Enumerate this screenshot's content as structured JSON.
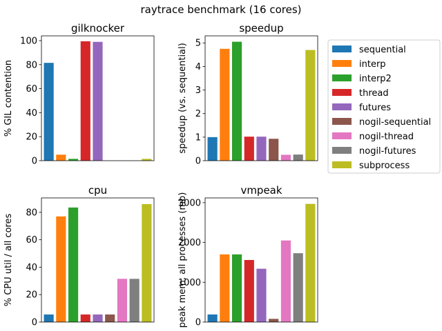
{
  "figure_title": "raytrace benchmark (16 cores)",
  "legend": {
    "placement": "right",
    "entries": [
      {
        "label": "sequential",
        "color": "#1f77b4"
      },
      {
        "label": "interp",
        "color": "#ff7f0e"
      },
      {
        "label": "interp2",
        "color": "#2ca02c"
      },
      {
        "label": "thread",
        "color": "#d62728"
      },
      {
        "label": "futures",
        "color": "#9467bd"
      },
      {
        "label": "nogil-sequential",
        "color": "#8c564b"
      },
      {
        "label": "nogil-thread",
        "color": "#e377c2"
      },
      {
        "label": "nogil-futures",
        "color": "#7f7f7f"
      },
      {
        "label": "subprocess",
        "color": "#bcbd22"
      }
    ]
  },
  "chart_data": [
    {
      "type": "bar",
      "title": "gilknocker",
      "xlabel": "",
      "ylabel": "% GIL contention",
      "categories": [
        "sequential",
        "interp",
        "interp2",
        "thread",
        "futures",
        "nogil-sequential",
        "nogil-thread",
        "nogil-futures",
        "subprocess"
      ],
      "values": [
        81.5,
        5,
        1.5,
        99.5,
        99,
        0,
        0,
        0,
        1.5
      ],
      "ylim": [
        0,
        104
      ],
      "yticks": [
        0,
        20,
        40,
        60,
        80,
        100
      ],
      "grid": false
    },
    {
      "type": "bar",
      "title": "speedup",
      "xlabel": "",
      "ylabel": "speedup (vs. sequential)",
      "categories": [
        "sequential",
        "interp",
        "interp2",
        "thread",
        "futures",
        "nogil-sequential",
        "nogil-thread",
        "nogil-futures",
        "subprocess"
      ],
      "values": [
        1.0,
        4.75,
        5.05,
        1.02,
        1.02,
        0.93,
        0.25,
        0.26,
        4.7
      ],
      "ylim": [
        0,
        5.3
      ],
      "yticks": [
        0,
        1,
        2,
        3,
        4,
        5
      ],
      "grid": false
    },
    {
      "type": "bar",
      "title": "cpu",
      "xlabel": "",
      "ylabel": "% CPU util / all cores",
      "categories": [
        "sequential",
        "interp",
        "interp2",
        "thread",
        "futures",
        "nogil-sequential",
        "nogil-thread",
        "nogil-futures",
        "subprocess"
      ],
      "values": [
        5.5,
        77,
        83.5,
        5.5,
        5.5,
        5.5,
        31.5,
        31.5,
        86
      ],
      "ylim": [
        0,
        90.5
      ],
      "yticks": [
        0,
        20,
        40,
        60,
        80
      ],
      "grid": false
    },
    {
      "type": "bar",
      "title": "vmpeak",
      "xlabel": "",
      "ylabel": "peak mem, all processes (mb)",
      "categories": [
        "sequential",
        "interp",
        "interp2",
        "thread",
        "futures",
        "nogil-sequential",
        "nogil-thread",
        "nogil-futures",
        "subprocess"
      ],
      "values": [
        190,
        1700,
        1700,
        1560,
        1340,
        80,
        2050,
        1730,
        2970
      ],
      "ylim": [
        0,
        3120
      ],
      "yticks": [
        0,
        1000,
        2000,
        3000
      ],
      "grid": false
    }
  ]
}
